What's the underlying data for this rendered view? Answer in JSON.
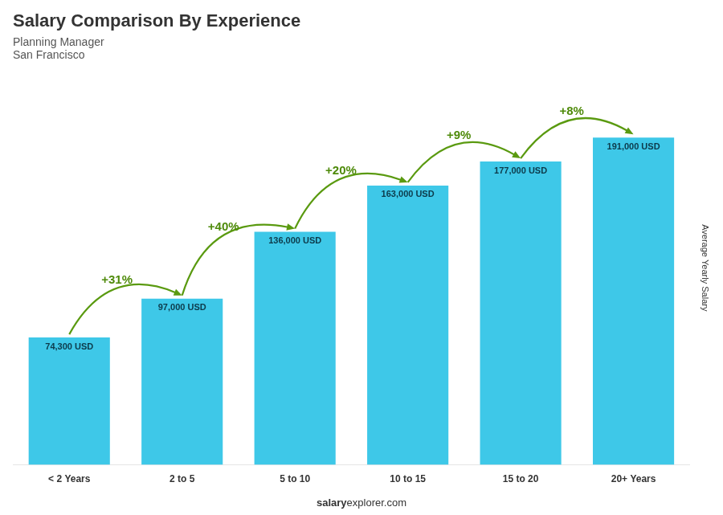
{
  "chart_data": {
    "type": "bar",
    "title": "Salary Comparison By Experience",
    "subtitle": [
      "Planning Manager",
      "San Francisco"
    ],
    "ylabel": "Average Yearly Salary",
    "categories": [
      "< 2 Years",
      "2 to 5",
      "5 to 10",
      "10 to 15",
      "15 to 20",
      "20+ Years"
    ],
    "values": [
      74300,
      97000,
      136000,
      163000,
      177000,
      191000
    ],
    "value_labels": [
      "74,300 USD",
      "97,000 USD",
      "136,000 USD",
      "163,000 USD",
      "177,000 USD",
      "191,000 USD"
    ],
    "data_labels": true,
    "annotations": [
      "+31%",
      "+40%",
      "+20%",
      "+9%",
      "+8%"
    ],
    "footer": [
      "salary",
      "explorer.com"
    ],
    "color": "#3ec8e8",
    "ylim": [
      0,
      230000
    ],
    "grid": false,
    "tick_labels": "x"
  }
}
